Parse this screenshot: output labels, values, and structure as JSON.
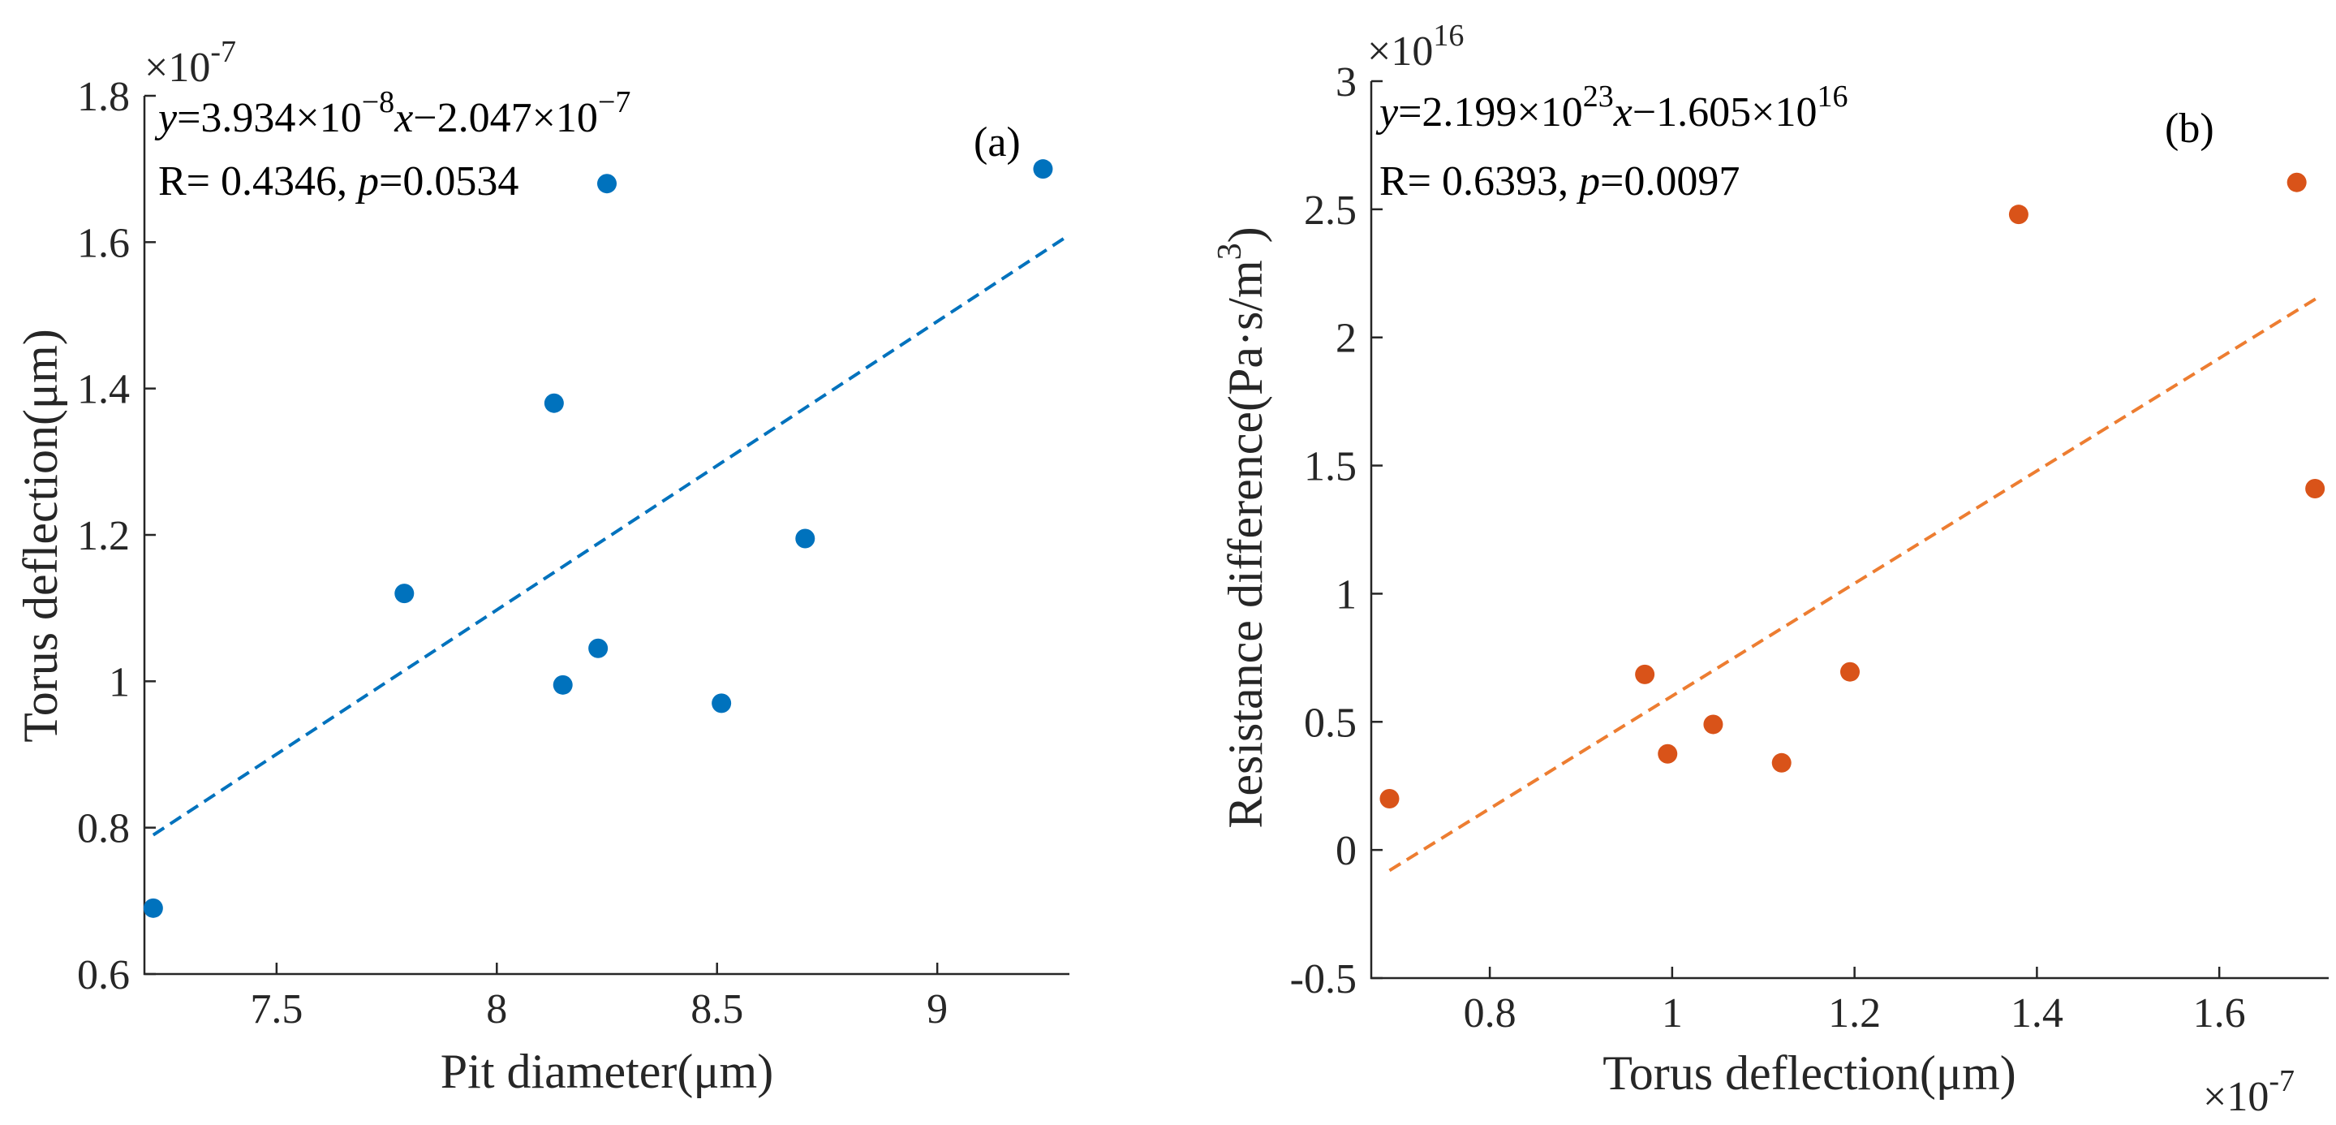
{
  "chart_data": [
    {
      "id": "a",
      "type": "scatter",
      "panel_label": "(a)",
      "xlabel": "Pit diameter(μm)",
      "ylabel": "Torus deflection(μm)",
      "exponent": {
        "base": "×10",
        "power": "-7"
      },
      "xlim": [
        7.2,
        9.3
      ],
      "ylim": [
        0.6,
        1.8
      ],
      "xticks": [
        7.5,
        8,
        8.5,
        9
      ],
      "xtick_labels": [
        "7.5",
        "8",
        "8.5",
        "9"
      ],
      "yticks": [
        0.6,
        0.8,
        1.0,
        1.2,
        1.4,
        1.6,
        1.8
      ],
      "ytick_labels": [
        "0.6",
        "0.8",
        "1",
        "1.2",
        "1.4",
        "1.6",
        "1.8"
      ],
      "color": "#0072BD",
      "points": [
        {
          "x": 7.22,
          "y": 0.69
        },
        {
          "x": 7.79,
          "y": 1.12
        },
        {
          "x": 8.13,
          "y": 1.38
        },
        {
          "x": 8.15,
          "y": 0.995
        },
        {
          "x": 8.23,
          "y": 1.045
        },
        {
          "x": 8.25,
          "y": 1.68
        },
        {
          "x": 8.51,
          "y": 0.97
        },
        {
          "x": 8.7,
          "y": 1.195
        },
        {
          "x": 9.24,
          "y": 1.7
        }
      ],
      "fit": {
        "x": [
          7.22,
          9.3
        ],
        "y": [
          0.79,
          1.61
        ]
      },
      "equation": {
        "y": "y",
        "eq1": "=3.934×10",
        "exp1": "−8",
        "x": "x",
        "eq2": "−2.047×10",
        "exp2": "−7"
      },
      "stats": {
        "r": "R= 0.4346, ",
        "p": "p",
        "pval": "=0.0534"
      }
    },
    {
      "id": "b",
      "type": "scatter",
      "panel_label": "(b)",
      "xlabel": "Torus deflection(μm)",
      "ylabel_main": "Resistance difference(Pa·s/m",
      "ylabel_sup": "3",
      "ylabel_end": ")",
      "y_exponent": {
        "base": "×10",
        "power": "16"
      },
      "x_exponent": {
        "base": "×10",
        "power": "-7"
      },
      "xlim": [
        0.67,
        1.72
      ],
      "ylim": [
        -0.5,
        3.0
      ],
      "xticks": [
        0.8,
        1.0,
        1.2,
        1.4,
        1.6
      ],
      "xtick_labels": [
        "0.8",
        "1",
        "1.2",
        "1.4",
        "1.6"
      ],
      "yticks": [
        -0.5,
        0,
        0.5,
        1.0,
        1.5,
        2.0,
        2.5,
        3.0
      ],
      "ytick_labels": [
        "-0.5",
        "0",
        "0.5",
        "1",
        "1.5",
        "2",
        "2.5",
        "3"
      ],
      "color": "#D95319",
      "points": [
        {
          "x": 0.69,
          "y": 0.2
        },
        {
          "x": 0.97,
          "y": 0.685
        },
        {
          "x": 0.995,
          "y": 0.375
        },
        {
          "x": 1.045,
          "y": 0.49
        },
        {
          "x": 1.12,
          "y": 0.34
        },
        {
          "x": 1.195,
          "y": 0.695
        },
        {
          "x": 1.38,
          "y": 2.48
        },
        {
          "x": 1.685,
          "y": 2.605
        },
        {
          "x": 1.705,
          "y": 1.41
        }
      ],
      "fit": {
        "x": [
          0.69,
          1.71
        ],
        "y": [
          -0.08,
          2.16
        ]
      },
      "equation": {
        "y": "y",
        "eq1": "=2.199×10",
        "exp1": "23",
        "x": "x",
        "eq2": "−1.605×10",
        "exp2": "16"
      },
      "stats": {
        "r": "R= 0.6393, ",
        "p": "p",
        "pval": "=0.0097"
      }
    }
  ]
}
